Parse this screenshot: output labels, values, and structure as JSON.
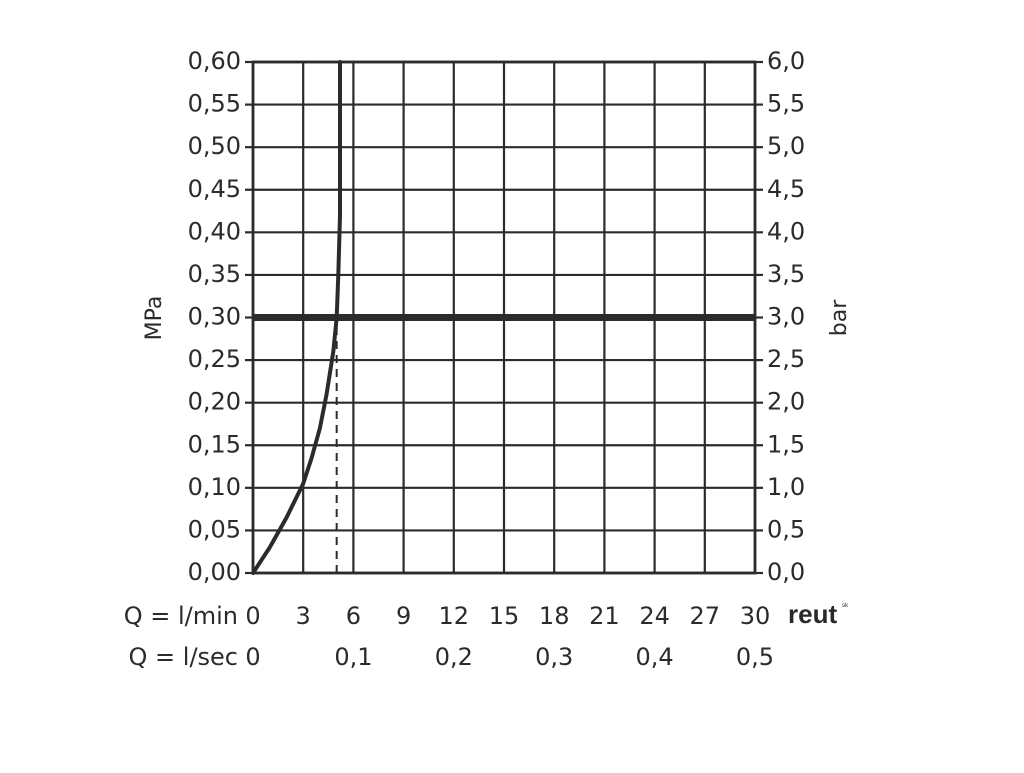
{
  "chart_data": {
    "type": "line",
    "title": "",
    "x_axis": {
      "rows": [
        {
          "label": "Q = l/min",
          "ticks": [
            {
              "value": 0,
              "label": "0"
            },
            {
              "value": 3,
              "label": "3"
            },
            {
              "value": 6,
              "label": "6"
            },
            {
              "value": 9,
              "label": "9"
            },
            {
              "value": 12,
              "label": "12"
            },
            {
              "value": 15,
              "label": "15"
            },
            {
              "value": 18,
              "label": "18"
            },
            {
              "value": 21,
              "label": "21"
            },
            {
              "value": 24,
              "label": "24"
            },
            {
              "value": 27,
              "label": "27"
            },
            {
              "value": 30,
              "label": "30"
            }
          ]
        },
        {
          "label": "Q = l/sec",
          "ticks": [
            {
              "value": 0,
              "label": "0"
            },
            {
              "value": 6,
              "label": "0,1"
            },
            {
              "value": 12,
              "label": "0,2"
            },
            {
              "value": 18,
              "label": "0,3"
            },
            {
              "value": 24,
              "label": "0,4"
            },
            {
              "value": 30,
              "label": "0,5"
            }
          ]
        }
      ],
      "range": [
        0,
        30
      ],
      "unit": "l/min"
    },
    "y_axis_left": {
      "label": "MPa",
      "range": [
        0,
        0.6
      ],
      "ticks": [
        "0,00",
        "0,05",
        "0,10",
        "0,15",
        "0,20",
        "0,25",
        "0,30",
        "0,35",
        "0,40",
        "0,45",
        "0,50",
        "0,55",
        "0,60"
      ]
    },
    "y_axis_right": {
      "label": "bar",
      "range": [
        0,
        6
      ],
      "ticks": [
        "0,0",
        "0,5",
        "1,0",
        "1,5",
        "2,0",
        "2,5",
        "3,0",
        "3,5",
        "4,0",
        "4,5",
        "5,0",
        "5,5",
        "6,0"
      ]
    },
    "grid": true,
    "series": [
      {
        "x": [
          0,
          1,
          2,
          3,
          3.5,
          4,
          4.4,
          4.8,
          5.0,
          5.1,
          5.2,
          5.2,
          5.2
        ],
        "y": [
          0,
          0.03,
          0.065,
          0.105,
          0.135,
          0.17,
          0.21,
          0.26,
          0.3,
          0.35,
          0.42,
          0.5,
          0.6
        ]
      }
    ],
    "reference_lines": [
      {
        "orientation": "horizontal",
        "y": 0.3,
        "style": "solid-thick"
      },
      {
        "orientation": "vertical",
        "x": 5.0,
        "y_from": 0,
        "y_to": 0.3,
        "style": "dashed"
      }
    ],
    "colors": {
      "line": "#2b2b2b",
      "grid": "#2b2b2b",
      "background": "#ffffff"
    }
  },
  "logo": {
    "text": "reut",
    "superscript": "sk"
  }
}
